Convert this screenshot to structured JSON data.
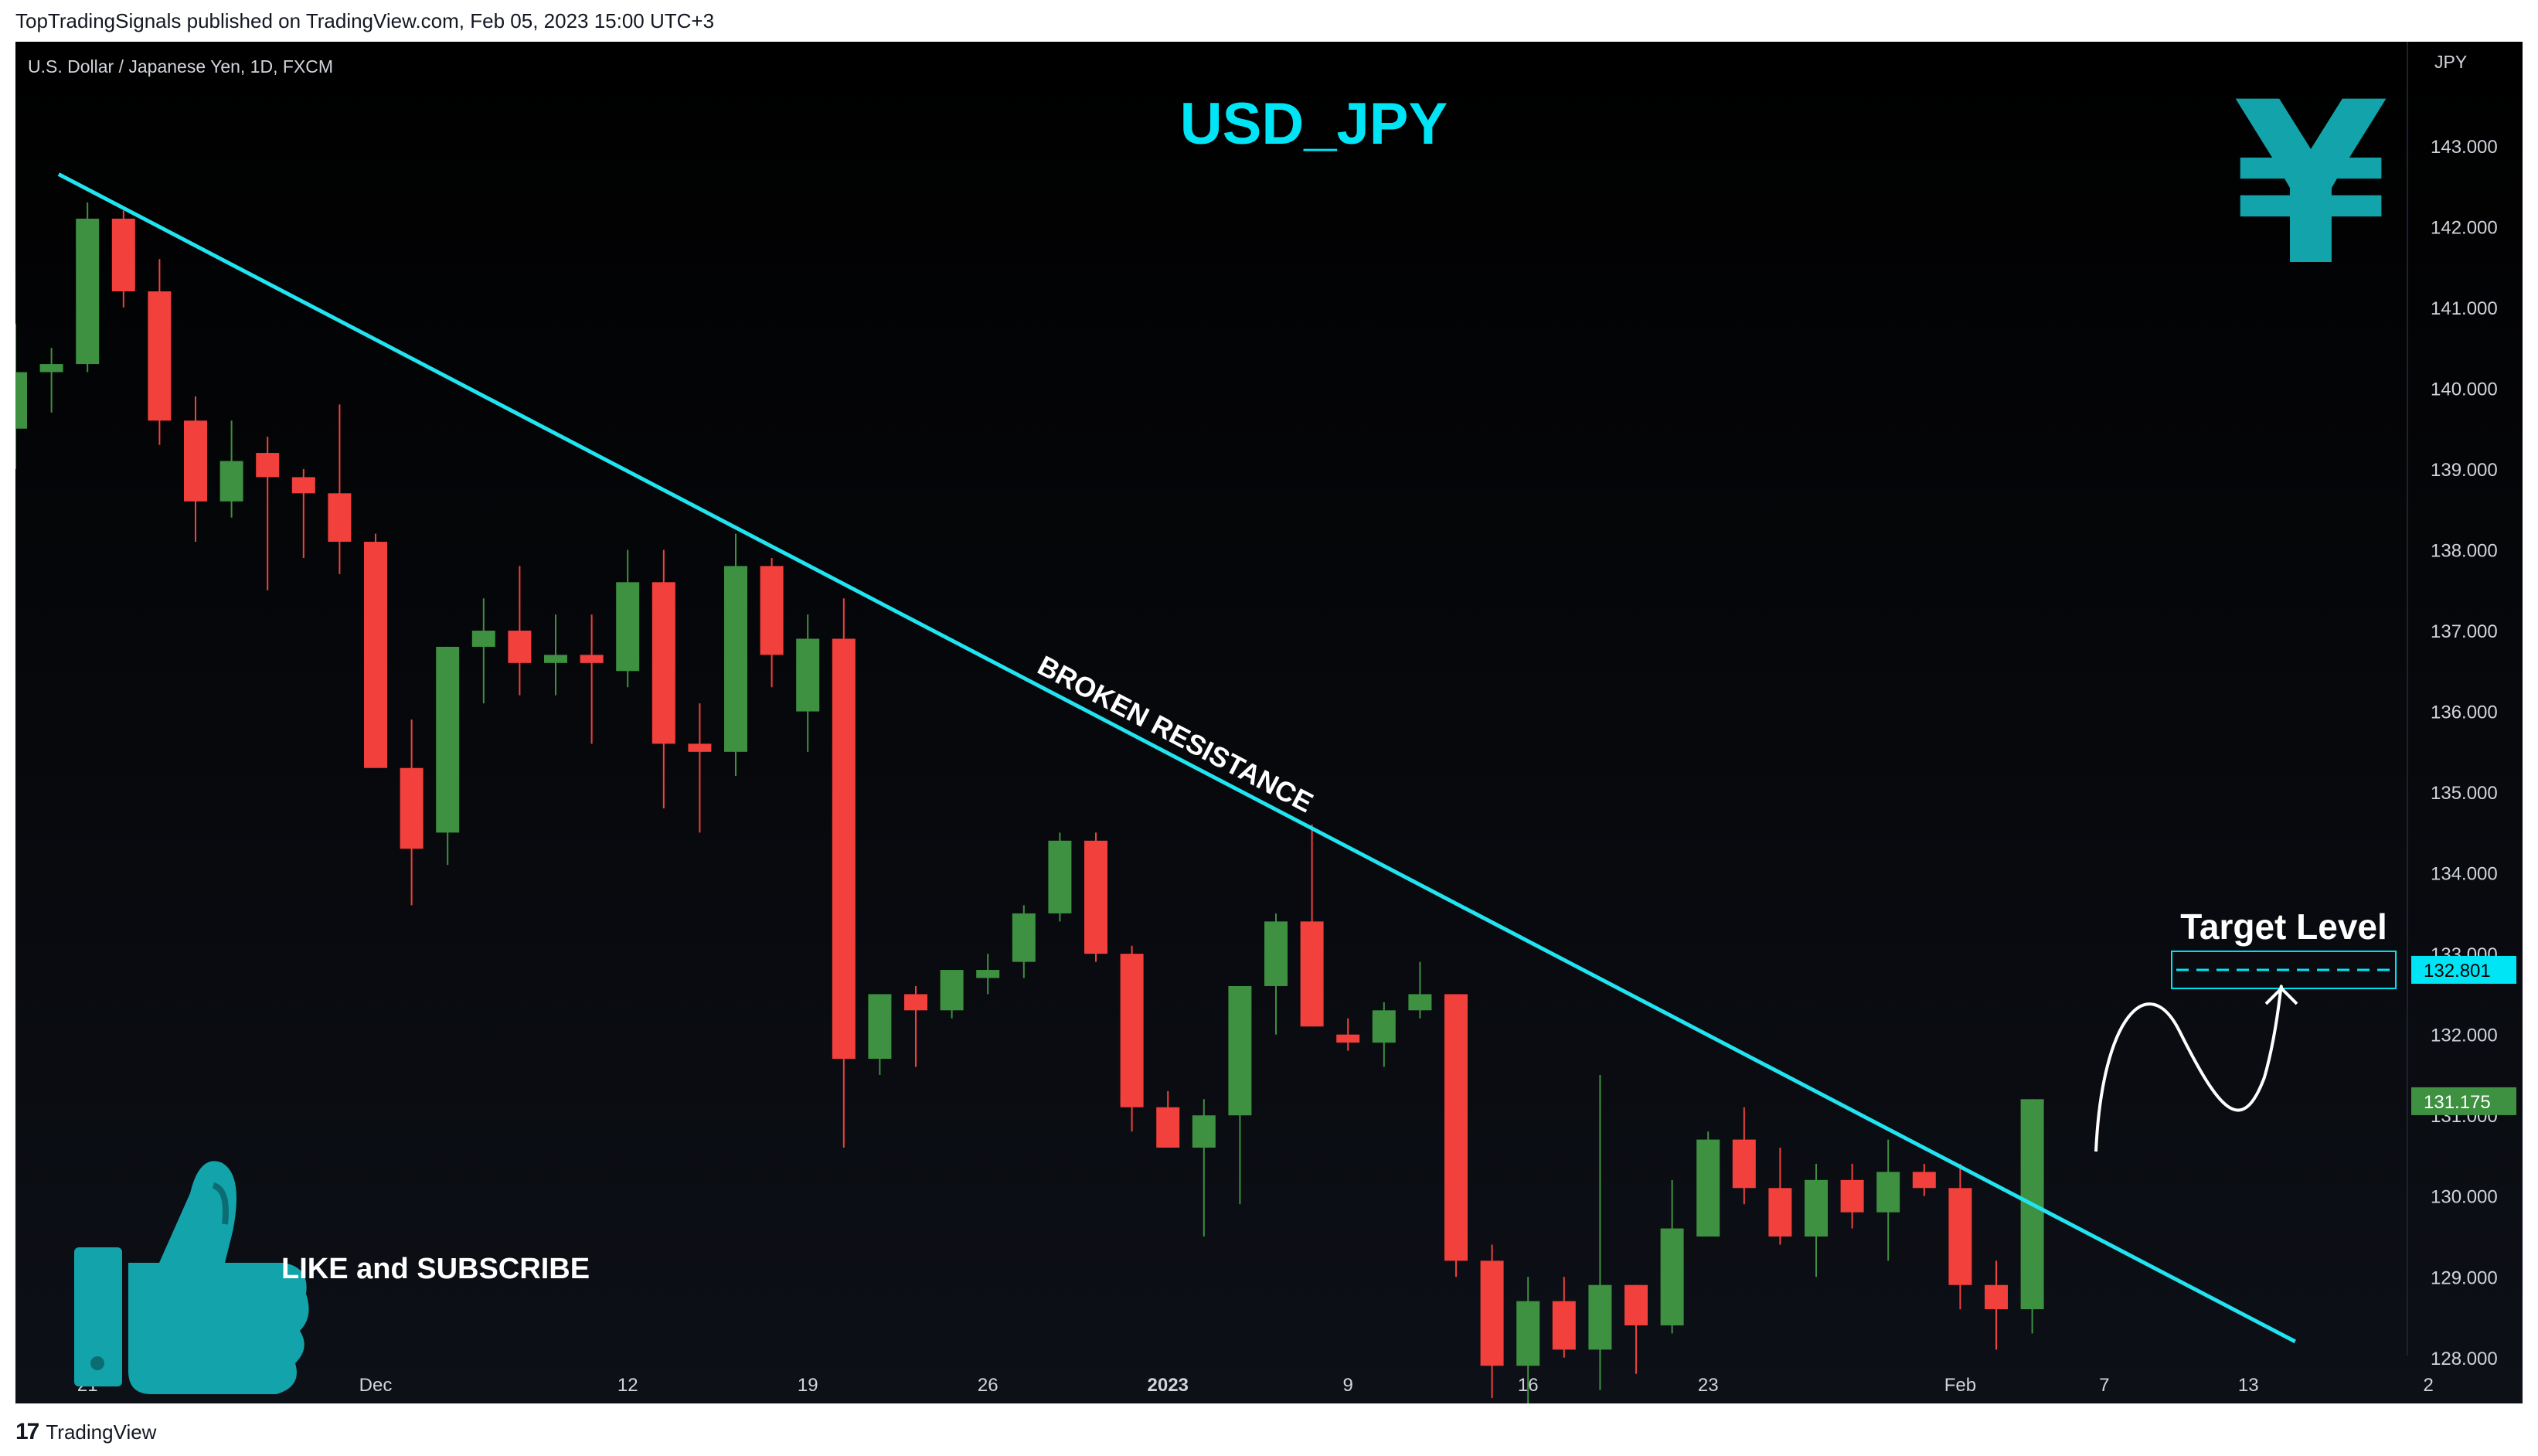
{
  "header": {
    "publish_line": "TopTradingSignals published on TradingView.com, Feb 05, 2023 15:00 UTC+3"
  },
  "footer": {
    "logo_glyph": "17",
    "brand": "TradingView"
  },
  "colors": {
    "up": "#3d9140",
    "down": "#f2403c",
    "accent": "#00e5f5",
    "background": "#090b10",
    "axis_text": "#d1d4dc"
  },
  "chart_data": {
    "type": "candlestick",
    "symbol_line": "U.S. Dollar / Japanese Yen, 1D, FXCM",
    "title": "USD_JPY",
    "currency_label": "JPY",
    "y_range": [
      127.0,
      143.0
    ],
    "y_ticks": [
      128.0,
      129.0,
      130.0,
      131.0,
      132.0,
      133.0,
      134.0,
      135.0,
      136.0,
      137.0,
      138.0,
      139.0,
      140.0,
      141.0,
      142.0,
      143.0
    ],
    "y_tick_labels": [
      "128.000",
      "129.000",
      "130.000",
      "131.000",
      "132.000",
      "133.000",
      "134.000",
      "135.000",
      "136.000",
      "137.000",
      "138.000",
      "139.000",
      "140.000",
      "141.000",
      "142.000",
      "143.000"
    ],
    "x_ticks": [
      {
        "label": "21",
        "i": 2
      },
      {
        "label": "25",
        "i": 6
      },
      {
        "label": "Dec",
        "i": 10
      },
      {
        "label": "12",
        "i": 17
      },
      {
        "label": "19",
        "i": 22
      },
      {
        "label": "26",
        "i": 27
      },
      {
        "label": "2023",
        "i": 32,
        "bold": true
      },
      {
        "label": "9",
        "i": 37
      },
      {
        "label": "16",
        "i": 42
      },
      {
        "label": "23",
        "i": 47
      },
      {
        "label": "Feb",
        "i": 54
      },
      {
        "label": "7",
        "i": 58
      },
      {
        "label": "13",
        "i": 62
      },
      {
        "label": "2",
        "i": 67
      }
    ],
    "candles": [
      {
        "o": 139.5,
        "h": 140.8,
        "l": 139.0,
        "c": 140.2
      },
      {
        "o": 140.2,
        "h": 140.5,
        "l": 139.7,
        "c": 140.3
      },
      {
        "o": 140.3,
        "h": 142.3,
        "l": 140.2,
        "c": 142.1
      },
      {
        "o": 142.1,
        "h": 142.2,
        "l": 141.0,
        "c": 141.2
      },
      {
        "o": 141.2,
        "h": 141.6,
        "l": 139.3,
        "c": 139.6
      },
      {
        "o": 139.6,
        "h": 139.9,
        "l": 138.1,
        "c": 138.6
      },
      {
        "o": 138.6,
        "h": 139.6,
        "l": 138.4,
        "c": 139.1
      },
      {
        "o": 139.2,
        "h": 139.4,
        "l": 137.5,
        "c": 138.9
      },
      {
        "o": 138.9,
        "h": 139.0,
        "l": 137.9,
        "c": 138.7
      },
      {
        "o": 138.7,
        "h": 139.8,
        "l": 137.7,
        "c": 138.1
      },
      {
        "o": 138.1,
        "h": 138.2,
        "l": 135.3,
        "c": 135.3
      },
      {
        "o": 135.3,
        "h": 135.9,
        "l": 133.6,
        "c": 134.3
      },
      {
        "o": 134.5,
        "h": 136.8,
        "l": 134.1,
        "c": 136.8
      },
      {
        "o": 136.8,
        "h": 137.4,
        "l": 136.1,
        "c": 137.0
      },
      {
        "o": 137.0,
        "h": 137.8,
        "l": 136.2,
        "c": 136.6
      },
      {
        "o": 136.6,
        "h": 137.2,
        "l": 136.2,
        "c": 136.7
      },
      {
        "o": 136.7,
        "h": 137.2,
        "l": 135.6,
        "c": 136.6
      },
      {
        "o": 136.5,
        "h": 138.0,
        "l": 136.3,
        "c": 137.6
      },
      {
        "o": 137.6,
        "h": 138.0,
        "l": 134.8,
        "c": 135.6
      },
      {
        "o": 135.6,
        "h": 136.1,
        "l": 134.5,
        "c": 135.5
      },
      {
        "o": 135.5,
        "h": 138.2,
        "l": 135.2,
        "c": 137.8
      },
      {
        "o": 137.8,
        "h": 137.9,
        "l": 136.3,
        "c": 136.7
      },
      {
        "o": 136.0,
        "h": 137.2,
        "l": 135.5,
        "c": 136.9
      },
      {
        "o": 136.9,
        "h": 137.4,
        "l": 130.6,
        "c": 131.7
      },
      {
        "o": 131.7,
        "h": 132.5,
        "l": 131.5,
        "c": 132.5
      },
      {
        "o": 132.5,
        "h": 132.6,
        "l": 131.6,
        "c": 132.3
      },
      {
        "o": 132.3,
        "h": 132.8,
        "l": 132.2,
        "c": 132.8
      },
      {
        "o": 132.7,
        "h": 133.0,
        "l": 132.5,
        "c": 132.8
      },
      {
        "o": 132.9,
        "h": 133.6,
        "l": 132.7,
        "c": 133.5
      },
      {
        "o": 133.5,
        "h": 134.5,
        "l": 133.4,
        "c": 134.4
      },
      {
        "o": 134.4,
        "h": 134.5,
        "l": 132.9,
        "c": 133.0
      },
      {
        "o": 133.0,
        "h": 133.1,
        "l": 130.8,
        "c": 131.1
      },
      {
        "o": 131.1,
        "h": 131.3,
        "l": 130.6,
        "c": 130.6
      },
      {
        "o": 130.6,
        "h": 131.2,
        "l": 129.5,
        "c": 131.0
      },
      {
        "o": 131.0,
        "h": 132.6,
        "l": 129.9,
        "c": 132.6
      },
      {
        "o": 132.6,
        "h": 133.5,
        "l": 132.0,
        "c": 133.4
      },
      {
        "o": 133.4,
        "h": 134.6,
        "l": 132.1,
        "c": 132.1
      },
      {
        "o": 132.0,
        "h": 132.2,
        "l": 131.8,
        "c": 131.9
      },
      {
        "o": 131.9,
        "h": 132.4,
        "l": 131.6,
        "c": 132.3
      },
      {
        "o": 132.3,
        "h": 132.9,
        "l": 132.2,
        "c": 132.5
      },
      {
        "o": 132.5,
        "h": 132.5,
        "l": 129.0,
        "c": 129.2
      },
      {
        "o": 129.2,
        "h": 129.4,
        "l": 127.5,
        "c": 127.9
      },
      {
        "o": 127.9,
        "h": 129.0,
        "l": 127.2,
        "c": 128.7
      },
      {
        "o": 128.7,
        "h": 129.0,
        "l": 128.0,
        "c": 128.1
      },
      {
        "o": 128.1,
        "h": 131.5,
        "l": 127.6,
        "c": 128.9
      },
      {
        "o": 128.9,
        "h": 128.9,
        "l": 127.8,
        "c": 128.4
      },
      {
        "o": 128.4,
        "h": 130.2,
        "l": 128.3,
        "c": 129.6
      },
      {
        "o": 129.5,
        "h": 130.8,
        "l": 129.5,
        "c": 130.7
      },
      {
        "o": 130.7,
        "h": 131.1,
        "l": 129.9,
        "c": 130.1
      },
      {
        "o": 130.1,
        "h": 130.6,
        "l": 129.4,
        "c": 129.5
      },
      {
        "o": 129.5,
        "h": 130.4,
        "l": 129.0,
        "c": 130.2
      },
      {
        "o": 130.2,
        "h": 130.4,
        "l": 129.6,
        "c": 129.8
      },
      {
        "o": 129.8,
        "h": 130.7,
        "l": 129.2,
        "c": 130.3
      },
      {
        "o": 130.3,
        "h": 130.4,
        "l": 130.0,
        "c": 130.1
      },
      {
        "o": 130.1,
        "h": 130.4,
        "l": 128.6,
        "c": 128.9
      },
      {
        "o": 128.9,
        "h": 129.2,
        "l": 128.1,
        "c": 128.6
      },
      {
        "o": 128.6,
        "h": 131.2,
        "l": 128.3,
        "c": 131.2
      }
    ],
    "trendline": {
      "from": {
        "i": 1.2,
        "y": 142.65
      },
      "to": {
        "i": 63.3,
        "y": 128.2
      },
      "label": "BROKEN RESISTANCE"
    },
    "target": {
      "label": "Target Level",
      "value": 132.801,
      "value_label": "132.801"
    },
    "last_price": {
      "value": 131.175,
      "label": "131.175"
    },
    "callout": {
      "text": "LIKE and SUBSCRIBE",
      "icon": "thumbs-up-icon"
    },
    "watermark_glyph": "¥"
  }
}
